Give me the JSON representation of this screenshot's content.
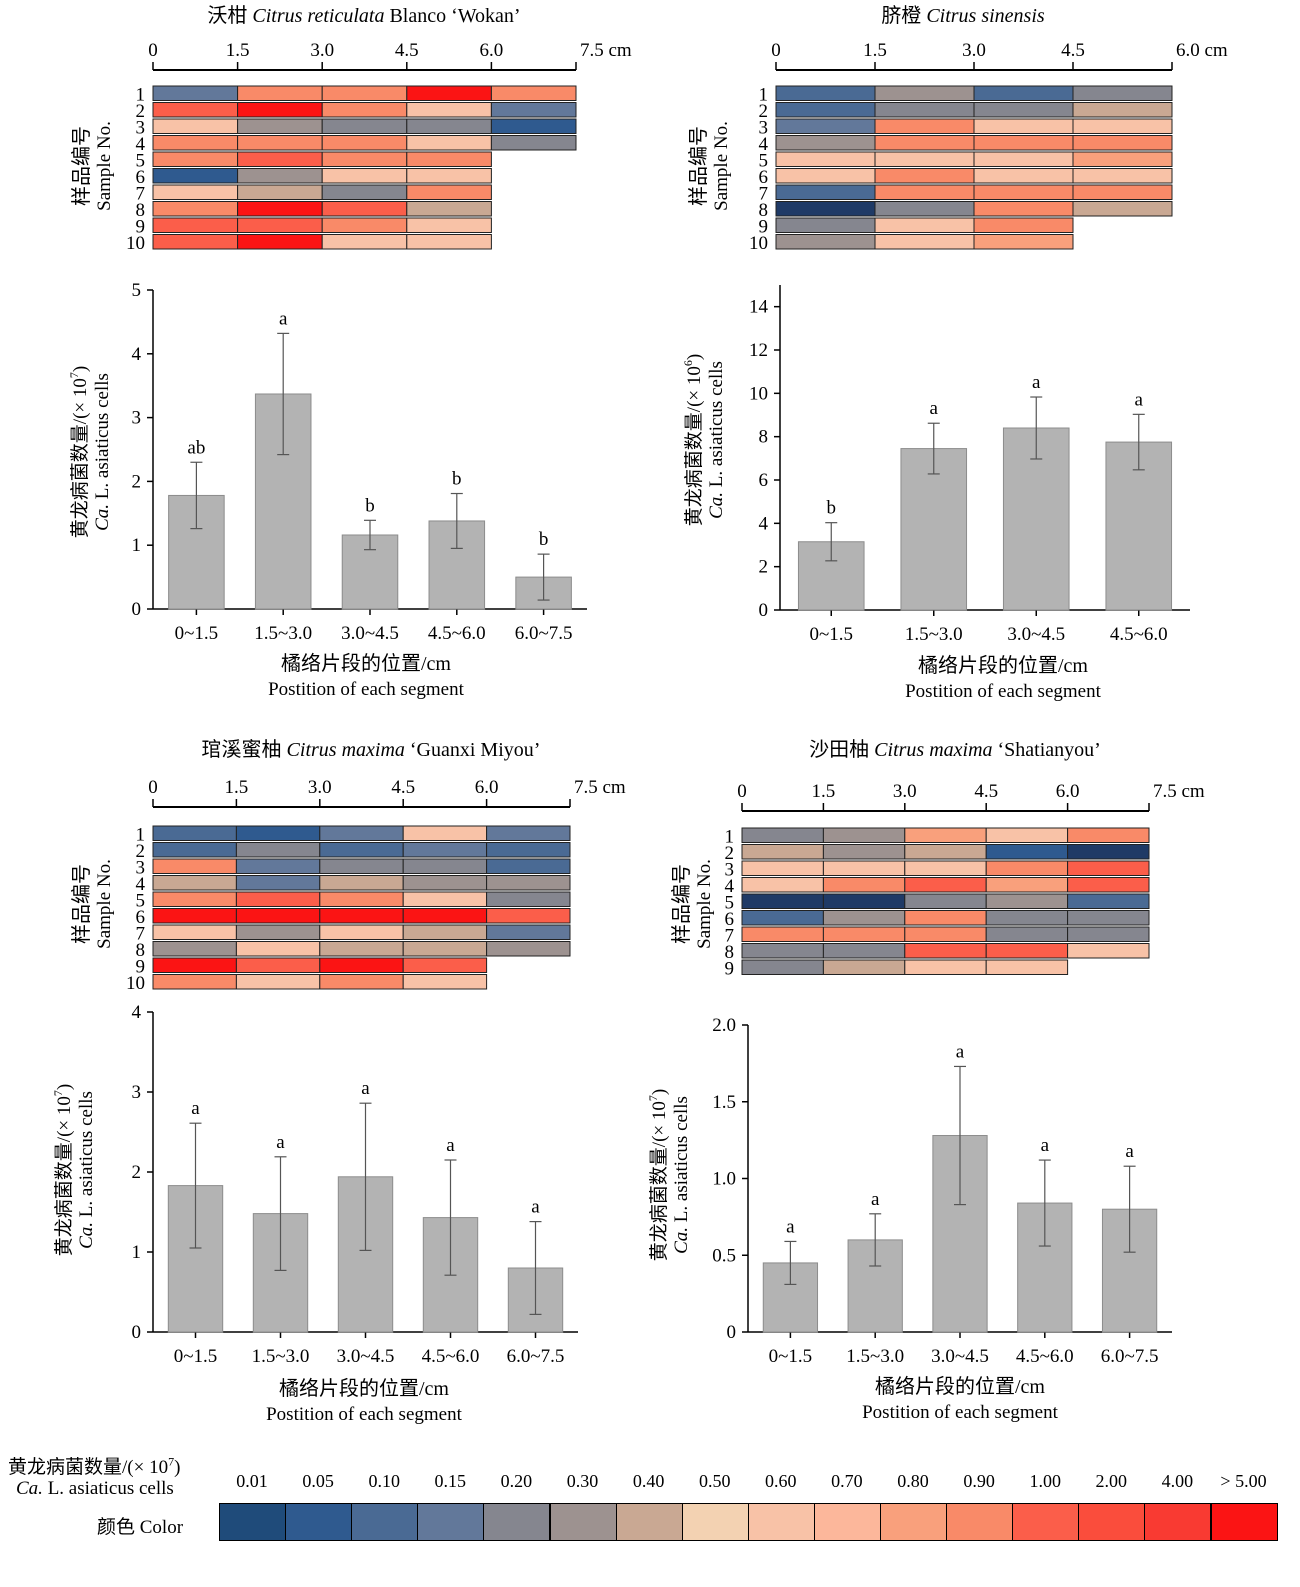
{
  "colors": {
    "bar_fill": "#b3b3b3",
    "bar_stroke": "#8c8c8c",
    "axis": "#000000"
  },
  "legend": {
    "title_cn": "黄龙病菌数量/(× 10",
    "title_exp": "7",
    "title_cn_end": ")",
    "title_en_italic": "Ca.",
    "title_en_rest": " L. asiaticus cells",
    "color_label": "颜色 Color",
    "ticks": [
      "0.01",
      "0.05",
      "0.10",
      "0.15",
      "0.20",
      "0.30",
      "0.40",
      "0.50",
      "0.60",
      "0.70",
      "0.80",
      "0.90",
      "1.00",
      "2.00",
      "4.00",
      "> 5.00"
    ],
    "swatches": [
      "#1f4b7a",
      "#2f5a8f",
      "#4a6a94",
      "#62789a",
      "#85868f",
      "#9d9290",
      "#c9a893",
      "#f3d2b2",
      "#f8c2a7",
      "#fcb79b",
      "#f9a07c",
      "#f98a68",
      "#fb5e4a",
      "#fa4d3c",
      "#f93a32",
      "#fb1414"
    ]
  },
  "chart_data": [
    {
      "type": "heatmap",
      "title_cn": "沃柑",
      "title_italic": "Citrus reticulata",
      "title_rest": " Blanco ‘Wokan’",
      "x_ticks": [
        "0",
        "1.5",
        "3.0",
        "4.5",
        "6.0",
        "7.5"
      ],
      "x_unit": "cm",
      "ylabel_cn": "样品编号",
      "ylabel_en": "Sample No.",
      "samples": [
        "1",
        "2",
        "3",
        "4",
        "5",
        "6",
        "7",
        "8",
        "9",
        "10"
      ],
      "cells": [
        [
          "#62789a",
          "#f98a68",
          "#f98a68",
          "#fb1414",
          "#f98a68"
        ],
        [
          "#fb5e4a",
          "#fb1414",
          "#f98a68",
          "#f8c2a7",
          "#62789a"
        ],
        [
          "#f8c2a7",
          "#9d9290",
          "#85868f",
          "#85868f",
          "#2f5a8f"
        ],
        [
          "#f98a68",
          "#f98a68",
          "#f98a68",
          "#f8c2a7",
          "#85868f"
        ],
        [
          "#f98a68",
          "#fb5e4a",
          "#f98a68",
          "#f98a68"
        ],
        [
          "#2f5a8f",
          "#9d9290",
          "#f8c2a7",
          "#f8c2a7"
        ],
        [
          "#f8c2a7",
          "#c9a893",
          "#85868f",
          "#f98a68"
        ],
        [
          "#f98a68",
          "#fb1414",
          "#fb5e4a",
          "#c9a893"
        ],
        [
          "#fb5e4a",
          "#fb5e4a",
          "#f98a68",
          "#f8c2a7"
        ],
        [
          "#fb5e4a",
          "#fb1414",
          "#f8c2a7",
          "#f8c2a7"
        ]
      ]
    },
    {
      "type": "bar",
      "categories": [
        "0~1.5",
        "1.5~3.0",
        "3.0~4.5",
        "4.5~6.0",
        "6.0~7.5"
      ],
      "values": [
        1.78,
        3.37,
        1.16,
        1.38,
        0.5
      ],
      "errors": [
        0.52,
        0.95,
        0.23,
        0.43,
        0.36
      ],
      "letters": [
        "ab",
        "a",
        "b",
        "b",
        "b"
      ],
      "ylim": [
        0,
        5
      ],
      "yticks": [
        "0",
        "1",
        "2",
        "3",
        "4",
        "5"
      ],
      "ylabel_cn": "黄龙病菌数量/(× 10",
      "ylabel_exp": "7",
      "ylabel_cn_end": ")",
      "ylabel_en_italic": "Ca.",
      "ylabel_en_rest": " L. asiaticus cells",
      "xlabel_cn": "橘络片段的位置/cm",
      "xlabel_en": "Postition of each segment"
    },
    {
      "type": "heatmap",
      "title_cn": "脐橙",
      "title_italic": "Citrus sinensis",
      "title_rest": "",
      "x_ticks": [
        "0",
        "1.5",
        "3.0",
        "4.5",
        "6.0"
      ],
      "x_unit": "cm",
      "ylabel_cn": "样品编号",
      "ylabel_en": "Sample No.",
      "samples": [
        "1",
        "2",
        "3",
        "4",
        "5",
        "6",
        "7",
        "8",
        "9",
        "10"
      ],
      "cells": [
        [
          "#4a6a94",
          "#9d9290",
          "#4a6a94",
          "#85868f"
        ],
        [
          "#4a6a94",
          "#85868f",
          "#85868f",
          "#c9a893"
        ],
        [
          "#62789a",
          "#f98a68",
          "#f8c2a7",
          "#f8c2a7"
        ],
        [
          "#9d9290",
          "#f98a68",
          "#f98a68",
          "#f98a68"
        ],
        [
          "#f8c2a7",
          "#f8c2a7",
          "#f8c2a7",
          "#f9a07c"
        ],
        [
          "#f8c2a7",
          "#f98a68",
          "#f8c2a7",
          "#f8c2a7"
        ],
        [
          "#4a6a94",
          "#f98a68",
          "#f98a68",
          "#f98a68"
        ],
        [
          "#1f3a66",
          "#85868f",
          "#f98a68",
          "#c9a893"
        ],
        [
          "#85868f",
          "#f8c2a7",
          "#f98a68"
        ],
        [
          "#9d9290",
          "#f8c2a7",
          "#f9a07c"
        ]
      ]
    },
    {
      "type": "bar",
      "categories": [
        "0~1.5",
        "1.5~3.0",
        "3.0~4.5",
        "4.5~6.0"
      ],
      "values": [
        3.15,
        7.45,
        8.4,
        7.75
      ],
      "errors": [
        0.88,
        1.17,
        1.43,
        1.28
      ],
      "letters": [
        "b",
        "a",
        "a",
        "a"
      ],
      "ylim": [
        0,
        15
      ],
      "yticks": [
        "0",
        "2",
        "4",
        "6",
        "8",
        "10",
        "12",
        "14"
      ],
      "ylabel_cn": "黄龙病菌数量/(× 10",
      "ylabel_exp": "6",
      "ylabel_cn_end": ")",
      "ylabel_en_italic": "Ca.",
      "ylabel_en_rest": " L. asiaticus cells",
      "xlabel_cn": "橘络片段的位置/cm",
      "xlabel_en": "Postition of each segment"
    },
    {
      "type": "heatmap",
      "title_cn": "琯溪蜜柚",
      "title_italic": "Citrus maxima",
      "title_rest": " ‘Guanxi Miyou’",
      "x_ticks": [
        "0",
        "1.5",
        "3.0",
        "4.5",
        "6.0",
        "7.5"
      ],
      "x_unit": "cm",
      "ylabel_cn": "样品编号",
      "ylabel_en": "Sample No.",
      "samples": [
        "1",
        "2",
        "3",
        "4",
        "5",
        "6",
        "7",
        "8",
        "9",
        "10"
      ],
      "cells": [
        [
          "#4a6a94",
          "#2f5a8f",
          "#62789a",
          "#f8c2a7",
          "#62789a"
        ],
        [
          "#4a6a94",
          "#85868f",
          "#4a6a94",
          "#62789a",
          "#4a6a94"
        ],
        [
          "#f98a68",
          "#62789a",
          "#85868f",
          "#85868f",
          "#4a6a94"
        ],
        [
          "#c9a893",
          "#62789a",
          "#c9a893",
          "#9d9290",
          "#9d9290"
        ],
        [
          "#f98a68",
          "#fb5e4a",
          "#f98a68",
          "#f8c2a7",
          "#85868f"
        ],
        [
          "#fb1414",
          "#fb1414",
          "#fb1414",
          "#fb1414",
          "#fb5e4a"
        ],
        [
          "#f8c2a7",
          "#9d9290",
          "#f8c2a7",
          "#c9a893",
          "#62789a"
        ],
        [
          "#9d9290",
          "#f8c2a7",
          "#c9a893",
          "#c9a893",
          "#9d9290"
        ],
        [
          "#fb1414",
          "#fb5e4a",
          "#fb1414",
          "#fb5e4a"
        ],
        [
          "#f98a68",
          "#f8c2a7",
          "#f98a68",
          "#f8c2a7"
        ]
      ]
    },
    {
      "type": "bar",
      "categories": [
        "0~1.5",
        "1.5~3.0",
        "3.0~4.5",
        "4.5~6.0",
        "6.0~7.5"
      ],
      "values": [
        1.83,
        1.48,
        1.94,
        1.43,
        0.8
      ],
      "errors": [
        0.78,
        0.71,
        0.92,
        0.72,
        0.58
      ],
      "letters": [
        "a",
        "a",
        "a",
        "a",
        "a"
      ],
      "ylim": [
        0,
        4
      ],
      "yticks": [
        "0",
        "1",
        "2",
        "3",
        "4"
      ],
      "ylabel_cn": "黄龙病菌数量/(× 10",
      "ylabel_exp": "7",
      "ylabel_cn_end": ")",
      "ylabel_en_italic": "Ca.",
      "ylabel_en_rest": " L. asiaticus cells",
      "xlabel_cn": "橘络片段的位置/cm",
      "xlabel_en": "Postition of each segment"
    },
    {
      "type": "heatmap",
      "title_cn": "沙田柚",
      "title_italic": "Citrus maxima",
      "title_rest": " ‘Shatianyou’",
      "x_ticks": [
        "0",
        "1.5",
        "3.0",
        "4.5",
        "6.0",
        "7.5"
      ],
      "x_unit": "cm",
      "ylabel_cn": "样品编号",
      "ylabel_en": "Sample No.",
      "samples": [
        "1",
        "2",
        "3",
        "4",
        "5",
        "6",
        "7",
        "8",
        "9"
      ],
      "cells": [
        [
          "#85868f",
          "#9d9290",
          "#f9a07c",
          "#f8c2a7",
          "#f98a68"
        ],
        [
          "#c9a893",
          "#9d9290",
          "#c9a893",
          "#2f5a8f",
          "#1f3a66"
        ],
        [
          "#f8c2a7",
          "#f8c2a7",
          "#f8c2a7",
          "#f98a68",
          "#fb5e4a"
        ],
        [
          "#f8c2a7",
          "#f98a68",
          "#fb5e4a",
          "#f9a07c",
          "#fb5e4a"
        ],
        [
          "#1f3a66",
          "#1f3a66",
          "#85868f",
          "#9d9290",
          "#4a6a94"
        ],
        [
          "#4a6a94",
          "#9d9290",
          "#f98a68",
          "#85868f",
          "#85868f"
        ],
        [
          "#f98a68",
          "#f98a68",
          "#f98a68",
          "#85868f",
          "#85868f"
        ],
        [
          "#85868f",
          "#85868f",
          "#fb5e4a",
          "#fb5e4a",
          "#f8c2a7"
        ],
        [
          "#85868f",
          "#c9a893",
          "#f8c2a7",
          "#f8c2a7"
        ]
      ]
    },
    {
      "type": "bar",
      "categories": [
        "0~1.5",
        "1.5~3.0",
        "3.0~4.5",
        "4.5~6.0",
        "6.0~7.5"
      ],
      "values": [
        0.45,
        0.6,
        1.28,
        0.84,
        0.8
      ],
      "errors": [
        0.14,
        0.17,
        0.45,
        0.28,
        0.28
      ],
      "letters": [
        "a",
        "a",
        "a",
        "a",
        "a"
      ],
      "ylim": [
        0,
        2
      ],
      "yticks": [
        "0",
        "0.5",
        "1.0",
        "1.5",
        "2.0"
      ],
      "ylabel_cn": "黄龙病菌数量/(× 10",
      "ylabel_exp": "7",
      "ylabel_cn_end": ")",
      "ylabel_en_italic": "Ca.",
      "ylabel_en_rest": " L. asiaticus cells",
      "xlabel_cn": "橘络片段的位置/cm",
      "xlabel_en": "Postition of each segment"
    }
  ]
}
